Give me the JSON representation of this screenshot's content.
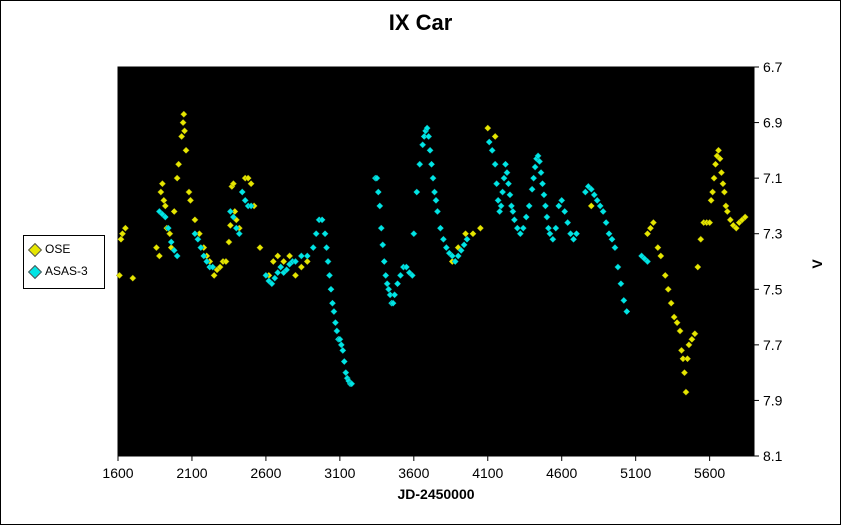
{
  "chart_data": {
    "type": "scatter",
    "title": "IX Car",
    "xlabel": "JD-2450000",
    "ylabel": "V",
    "xlim": [
      1600,
      5900
    ],
    "ylim": [
      8.1,
      6.7
    ],
    "y_inverted": true,
    "x_ticks": [
      1600,
      2100,
      2600,
      3100,
      3600,
      4100,
      4600,
      5100,
      5600
    ],
    "x_tick_labels": [
      "1600",
      "2100",
      "2600",
      "3100",
      "3600",
      "4100",
      "4600",
      "5100",
      "5600"
    ],
    "y_ticks": [
      6.7,
      6.9,
      7.1,
      7.3,
      7.5,
      7.7,
      7.9,
      8.1
    ],
    "y_tick_labels": [
      "6.7",
      "6.9",
      "7.1",
      "7.3",
      "7.5",
      "7.7",
      "7.9",
      "8.1"
    ],
    "y_axis_side": "right",
    "plot_background": "#000000",
    "grid": false,
    "legend_position": "left",
    "series": [
      {
        "name": "OSE",
        "color": "#e6e600",
        "marker": "diamond",
        "points": [
          [
            1610,
            7.45
          ],
          [
            1620,
            7.32
          ],
          [
            1630,
            7.3
          ],
          [
            1650,
            7.28
          ],
          [
            1700,
            7.46
          ],
          [
            1860,
            7.35
          ],
          [
            1880,
            7.38
          ],
          [
            1890,
            7.15
          ],
          [
            1900,
            7.12
          ],
          [
            1910,
            7.18
          ],
          [
            1920,
            7.2
          ],
          [
            1930,
            7.28
          ],
          [
            1950,
            7.3
          ],
          [
            1960,
            7.35
          ],
          [
            1980,
            7.22
          ],
          [
            2000,
            7.1
          ],
          [
            2010,
            7.05
          ],
          [
            2030,
            6.95
          ],
          [
            2040,
            6.9
          ],
          [
            2045,
            6.87
          ],
          [
            2050,
            6.93
          ],
          [
            2060,
            7.0
          ],
          [
            2080,
            7.15
          ],
          [
            2090,
            7.18
          ],
          [
            2120,
            7.25
          ],
          [
            2150,
            7.3
          ],
          [
            2180,
            7.35
          ],
          [
            2200,
            7.38
          ],
          [
            2220,
            7.4
          ],
          [
            2250,
            7.45
          ],
          [
            2270,
            7.43
          ],
          [
            2290,
            7.42
          ],
          [
            2310,
            7.4
          ],
          [
            2330,
            7.4
          ],
          [
            2350,
            7.33
          ],
          [
            2360,
            7.27
          ],
          [
            2370,
            7.13
          ],
          [
            2380,
            7.12
          ],
          [
            2390,
            7.22
          ],
          [
            2400,
            7.25
          ],
          [
            2420,
            7.28
          ],
          [
            2440,
            7.15
          ],
          [
            2460,
            7.1
          ],
          [
            2480,
            7.1
          ],
          [
            2500,
            7.12
          ],
          [
            2520,
            7.2
          ],
          [
            2560,
            7.35
          ],
          [
            2620,
            7.45
          ],
          [
            2650,
            7.4
          ],
          [
            2680,
            7.38
          ],
          [
            2700,
            7.42
          ],
          [
            2720,
            7.4
          ],
          [
            2760,
            7.38
          ],
          [
            2800,
            7.45
          ],
          [
            2840,
            7.42
          ],
          [
            2880,
            7.4
          ],
          [
            3860,
            7.4
          ],
          [
            3900,
            7.35
          ],
          [
            3950,
            7.3
          ],
          [
            4000,
            7.3
          ],
          [
            4050,
            7.28
          ],
          [
            4100,
            6.92
          ],
          [
            4150,
            6.95
          ],
          [
            4800,
            7.2
          ],
          [
            5180,
            7.3
          ],
          [
            5200,
            7.28
          ],
          [
            5220,
            7.26
          ],
          [
            5250,
            7.35
          ],
          [
            5270,
            7.38
          ],
          [
            5300,
            7.45
          ],
          [
            5320,
            7.5
          ],
          [
            5340,
            7.55
          ],
          [
            5360,
            7.6
          ],
          [
            5380,
            7.62
          ],
          [
            5400,
            7.65
          ],
          [
            5410,
            7.72
          ],
          [
            5420,
            7.75
          ],
          [
            5430,
            7.8
          ],
          [
            5440,
            7.87
          ],
          [
            5450,
            7.75
          ],
          [
            5460,
            7.7
          ],
          [
            5480,
            7.68
          ],
          [
            5500,
            7.66
          ],
          [
            5520,
            7.42
          ],
          [
            5540,
            7.32
          ],
          [
            5560,
            7.26
          ],
          [
            5580,
            7.26
          ],
          [
            5600,
            7.26
          ],
          [
            5610,
            7.18
          ],
          [
            5620,
            7.15
          ],
          [
            5630,
            7.1
          ],
          [
            5640,
            7.05
          ],
          [
            5650,
            7.02
          ],
          [
            5660,
            7.0
          ],
          [
            5670,
            7.03
          ],
          [
            5680,
            7.08
          ],
          [
            5690,
            7.12
          ],
          [
            5700,
            7.15
          ],
          [
            5710,
            7.2
          ],
          [
            5720,
            7.22
          ],
          [
            5740,
            7.25
          ],
          [
            5760,
            7.27
          ],
          [
            5780,
            7.28
          ],
          [
            5800,
            7.26
          ],
          [
            5820,
            7.25
          ],
          [
            5840,
            7.24
          ]
        ]
      },
      {
        "name": "ASAS-3",
        "color": "#00e5e5",
        "marker": "diamond",
        "points": [
          [
            1880,
            7.22
          ],
          [
            1900,
            7.23
          ],
          [
            1920,
            7.24
          ],
          [
            1940,
            7.28
          ],
          [
            1960,
            7.33
          ],
          [
            1980,
            7.36
          ],
          [
            2000,
            7.38
          ],
          [
            2120,
            7.3
          ],
          [
            2140,
            7.32
          ],
          [
            2160,
            7.35
          ],
          [
            2180,
            7.38
          ],
          [
            2200,
            7.4
          ],
          [
            2220,
            7.42
          ],
          [
            2240,
            7.42
          ],
          [
            2360,
            7.22
          ],
          [
            2380,
            7.24
          ],
          [
            2400,
            7.28
          ],
          [
            2420,
            7.3
          ],
          [
            2440,
            7.15
          ],
          [
            2460,
            7.18
          ],
          [
            2480,
            7.2
          ],
          [
            2500,
            7.2
          ],
          [
            2600,
            7.45
          ],
          [
            2620,
            7.47
          ],
          [
            2640,
            7.48
          ],
          [
            2660,
            7.46
          ],
          [
            2680,
            7.44
          ],
          [
            2700,
            7.42
          ],
          [
            2720,
            7.44
          ],
          [
            2740,
            7.43
          ],
          [
            2760,
            7.41
          ],
          [
            2780,
            7.4
          ],
          [
            2800,
            7.4
          ],
          [
            2840,
            7.38
          ],
          [
            2880,
            7.38
          ],
          [
            2920,
            7.35
          ],
          [
            2940,
            7.3
          ],
          [
            2960,
            7.25
          ],
          [
            2980,
            7.25
          ],
          [
            3000,
            7.3
          ],
          [
            3010,
            7.35
          ],
          [
            3020,
            7.4
          ],
          [
            3030,
            7.45
          ],
          [
            3040,
            7.5
          ],
          [
            3050,
            7.55
          ],
          [
            3060,
            7.58
          ],
          [
            3070,
            7.62
          ],
          [
            3080,
            7.65
          ],
          [
            3090,
            7.68
          ],
          [
            3100,
            7.68
          ],
          [
            3110,
            7.7
          ],
          [
            3120,
            7.72
          ],
          [
            3130,
            7.76
          ],
          [
            3140,
            7.8
          ],
          [
            3150,
            7.82
          ],
          [
            3160,
            7.83
          ],
          [
            3170,
            7.84
          ],
          [
            3180,
            7.84
          ],
          [
            3340,
            7.1
          ],
          [
            3350,
            7.1
          ],
          [
            3360,
            7.15
          ],
          [
            3370,
            7.2
          ],
          [
            3380,
            7.28
          ],
          [
            3390,
            7.34
          ],
          [
            3400,
            7.4
          ],
          [
            3410,
            7.45
          ],
          [
            3420,
            7.48
          ],
          [
            3430,
            7.5
          ],
          [
            3440,
            7.52
          ],
          [
            3450,
            7.55
          ],
          [
            3460,
            7.55
          ],
          [
            3470,
            7.52
          ],
          [
            3490,
            7.48
          ],
          [
            3510,
            7.45
          ],
          [
            3530,
            7.42
          ],
          [
            3550,
            7.42
          ],
          [
            3570,
            7.44
          ],
          [
            3590,
            7.45
          ],
          [
            3600,
            7.3
          ],
          [
            3620,
            7.15
          ],
          [
            3640,
            7.05
          ],
          [
            3660,
            6.98
          ],
          [
            3670,
            6.95
          ],
          [
            3680,
            6.93
          ],
          [
            3690,
            6.92
          ],
          [
            3700,
            6.95
          ],
          [
            3710,
            7.0
          ],
          [
            3720,
            7.05
          ],
          [
            3730,
            7.1
          ],
          [
            3740,
            7.15
          ],
          [
            3750,
            7.18
          ],
          [
            3760,
            7.22
          ],
          [
            3780,
            7.28
          ],
          [
            3800,
            7.32
          ],
          [
            3820,
            7.35
          ],
          [
            3840,
            7.37
          ],
          [
            3860,
            7.38
          ],
          [
            3880,
            7.4
          ],
          [
            3900,
            7.38
          ],
          [
            3920,
            7.36
          ],
          [
            3940,
            7.34
          ],
          [
            3960,
            7.32
          ],
          [
            4110,
            6.97
          ],
          [
            4130,
            7.0
          ],
          [
            4150,
            7.05
          ],
          [
            4160,
            7.12
          ],
          [
            4170,
            7.18
          ],
          [
            4180,
            7.22
          ],
          [
            4190,
            7.2
          ],
          [
            4200,
            7.15
          ],
          [
            4210,
            7.1
          ],
          [
            4220,
            7.05
          ],
          [
            4230,
            7.08
          ],
          [
            4240,
            7.12
          ],
          [
            4250,
            7.16
          ],
          [
            4260,
            7.2
          ],
          [
            4270,
            7.22
          ],
          [
            4280,
            7.25
          ],
          [
            4300,
            7.28
          ],
          [
            4320,
            7.3
          ],
          [
            4340,
            7.28
          ],
          [
            4360,
            7.24
          ],
          [
            4380,
            7.2
          ],
          [
            4400,
            7.14
          ],
          [
            4410,
            7.1
          ],
          [
            4420,
            7.06
          ],
          [
            4430,
            7.03
          ],
          [
            4440,
            7.02
          ],
          [
            4450,
            7.04
          ],
          [
            4460,
            7.08
          ],
          [
            4470,
            7.12
          ],
          [
            4480,
            7.16
          ],
          [
            4490,
            7.2
          ],
          [
            4500,
            7.24
          ],
          [
            4510,
            7.28
          ],
          [
            4520,
            7.3
          ],
          [
            4540,
            7.32
          ],
          [
            4560,
            7.28
          ],
          [
            4580,
            7.2
          ],
          [
            4600,
            7.18
          ],
          [
            4620,
            7.22
          ],
          [
            4640,
            7.26
          ],
          [
            4660,
            7.3
          ],
          [
            4680,
            7.32
          ],
          [
            4700,
            7.3
          ],
          [
            4760,
            7.15
          ],
          [
            4780,
            7.13
          ],
          [
            4800,
            7.14
          ],
          [
            4820,
            7.16
          ],
          [
            4840,
            7.18
          ],
          [
            4860,
            7.2
          ],
          [
            4880,
            7.22
          ],
          [
            4900,
            7.26
          ],
          [
            4920,
            7.3
          ],
          [
            4940,
            7.32
          ],
          [
            4960,
            7.35
          ],
          [
            4980,
            7.42
          ],
          [
            5000,
            7.48
          ],
          [
            5020,
            7.54
          ],
          [
            5040,
            7.58
          ],
          [
            5140,
            7.38
          ],
          [
            5160,
            7.39
          ],
          [
            5180,
            7.4
          ]
        ]
      }
    ]
  }
}
